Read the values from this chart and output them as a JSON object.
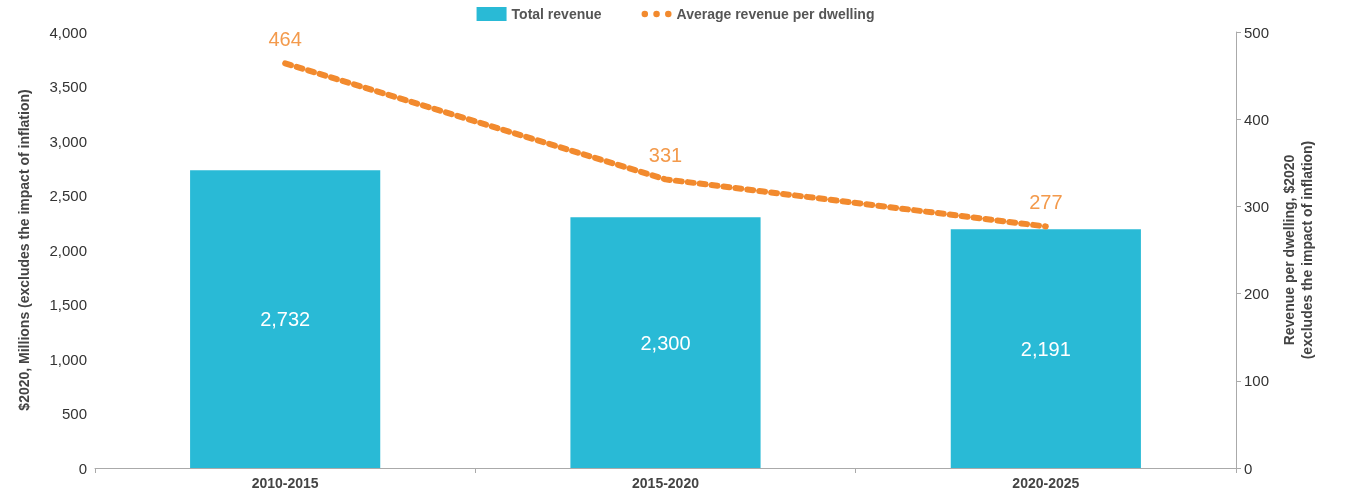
{
  "chart_data": {
    "type": "bar",
    "categories": [
      "2010-2015",
      "2015-2020",
      "2020-2025"
    ],
    "series": [
      {
        "name": "Total revenue",
        "color": "#29bad6",
        "values": [
          2732,
          2300,
          2191
        ],
        "value_labels": [
          "2,732",
          "2,300",
          "2,191"
        ]
      },
      {
        "name": "Average revenue per dwelling",
        "type": "line",
        "axis": "y2",
        "color": "#f28a2e",
        "values": [
          464,
          331,
          277
        ],
        "value_labels": [
          "464",
          "331",
          "277"
        ]
      }
    ],
    "ylabel": "$2020, Millions (excludes the impact of inflation)",
    "y2label": "Revenue per dwelling, $2020\n(excludes the impact of inflation)",
    "ylim": [
      0,
      4000
    ],
    "yticks": [
      0,
      500,
      {
        "value": 1000,
        "label": "1,000"
      },
      {
        "value": 1500,
        "label": "1,500"
      },
      {
        "value": 2000,
        "label": "2,000"
      },
      {
        "value": 2500,
        "label": "2,500"
      },
      {
        "value": 3000,
        "label": "3,000"
      },
      {
        "value": 3500,
        "label": "3,500"
      },
      {
        "value": 4000,
        "label": "4,000"
      }
    ],
    "y2lim": [
      0,
      500
    ],
    "y2ticks": [
      0,
      100,
      200,
      300,
      400,
      500
    ],
    "legend": "top",
    "line_style": "dotted",
    "marker": "none"
  }
}
